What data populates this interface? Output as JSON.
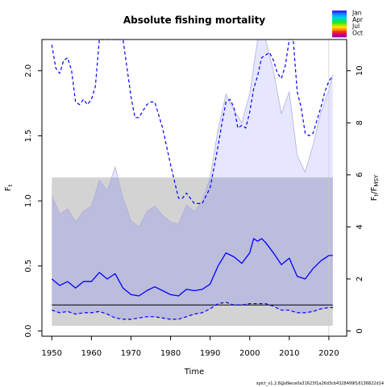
{
  "chart_data": {
    "type": "line",
    "title": "Absolute fishing mortality",
    "xlabel": "Time",
    "ylabel_left": "F_t",
    "ylabel_right": "F_t/F_MSY",
    "xlim": [
      1947.5,
      2024.5
    ],
    "ylim": [
      -0.04,
      2.24
    ],
    "ylim_right": [
      -0.2,
      11.2
    ],
    "x_ticks": [
      1950,
      1960,
      1970,
      1980,
      1990,
      2000,
      2010,
      2020
    ],
    "y_ticks": [
      0.0,
      0.5,
      1.0,
      1.5,
      2.0
    ],
    "y_ticks_right": [
      0,
      2,
      4,
      6,
      8,
      10
    ],
    "reference_line_F": 0.2,
    "ref_band": {
      "x": [
        1950,
        2021
      ],
      "y": [
        0.04,
        1.18
      ]
    },
    "ci_F": {
      "x": [
        1950,
        1952,
        1954,
        1956,
        1958,
        1960,
        1962,
        1964,
        1966,
        1968,
        1970,
        1972,
        1974,
        1976,
        1978,
        1980,
        1982,
        1984,
        1986,
        1988,
        1990,
        1992,
        1994,
        1996,
        1998,
        2000,
        2002,
        2004,
        2006,
        2008,
        2010,
        2012,
        2014,
        2016,
        2018,
        2020,
        2021
      ],
      "lower": [
        0.16,
        0.14,
        0.15,
        0.13,
        0.14,
        0.14,
        0.15,
        0.13,
        0.1,
        0.09,
        0.09,
        0.1,
        0.11,
        0.11,
        0.1,
        0.09,
        0.09,
        0.11,
        0.13,
        0.14,
        0.17,
        0.21,
        0.22,
        0.2,
        0.2,
        0.21,
        0.21,
        0.21,
        0.19,
        0.16,
        0.16,
        0.14,
        0.14,
        0.15,
        0.17,
        0.18,
        0.18
      ],
      "upper": [
        1.04,
        0.9,
        0.94,
        0.84,
        0.92,
        0.96,
        1.16,
        1.08,
        1.26,
        1.02,
        0.85,
        0.8,
        0.92,
        0.96,
        0.89,
        0.84,
        0.82,
        0.97,
        0.92,
        1.0,
        1.18,
        1.55,
        1.82,
        1.7,
        1.6,
        1.82,
        2.24,
        2.24,
        2.0,
        1.67,
        1.84,
        1.35,
        1.22,
        1.43,
        1.68,
        1.85,
        1.97
      ]
    },
    "series": [
      {
        "name": "F_t",
        "x": [
          1950,
          1952,
          1954,
          1956,
          1958,
          1960,
          1962,
          1964,
          1966,
          1968,
          1970,
          1972,
          1974,
          1976,
          1978,
          1980,
          1982,
          1984,
          1986,
          1988,
          1990,
          1992,
          1994,
          1996,
          1998,
          2000,
          2001,
          2002,
          2003,
          2004,
          2006,
          2008,
          2010,
          2012,
          2014,
          2016,
          2018,
          2020,
          2021
        ],
        "y": [
          0.4,
          0.35,
          0.38,
          0.33,
          0.38,
          0.38,
          0.45,
          0.4,
          0.44,
          0.33,
          0.28,
          0.27,
          0.31,
          0.34,
          0.31,
          0.28,
          0.27,
          0.32,
          0.31,
          0.32,
          0.36,
          0.5,
          0.6,
          0.57,
          0.52,
          0.6,
          0.71,
          0.69,
          0.71,
          0.68,
          0.6,
          0.51,
          0.56,
          0.42,
          0.4,
          0.48,
          0.54,
          0.58,
          0.58
        ]
      },
      {
        "name": "F_t lower",
        "x": [
          1950,
          1952,
          1954,
          1956,
          1958,
          1960,
          1962,
          1964,
          1966,
          1968,
          1970,
          1972,
          1974,
          1976,
          1978,
          1980,
          1982,
          1984,
          1986,
          1988,
          1990,
          1992,
          1994,
          1996,
          1998,
          2000,
          2002,
          2004,
          2006,
          2008,
          2010,
          2012,
          2014,
          2016,
          2018,
          2020,
          2021
        ],
        "y": [
          0.16,
          0.14,
          0.15,
          0.13,
          0.14,
          0.14,
          0.15,
          0.13,
          0.1,
          0.09,
          0.09,
          0.1,
          0.11,
          0.11,
          0.1,
          0.09,
          0.09,
          0.11,
          0.13,
          0.14,
          0.17,
          0.21,
          0.22,
          0.2,
          0.2,
          0.21,
          0.21,
          0.21,
          0.19,
          0.16,
          0.16,
          0.14,
          0.14,
          0.15,
          0.17,
          0.18,
          0.18
        ]
      },
      {
        "name": "F_t/F_MSY",
        "axis": "right",
        "x": [
          1950,
          1951,
          1952,
          1953,
          1954,
          1955,
          1956,
          1957,
          1958,
          1959,
          1960,
          1961,
          1962,
          1964,
          1966,
          1968,
          1970,
          1971,
          1972,
          1974,
          1975,
          1976,
          1978,
          1980,
          1982,
          1983,
          1984,
          1986,
          1988,
          1990,
          1992,
          1993,
          1994,
          1995,
          1996,
          1997,
          1998,
          1999,
          2000,
          2001,
          2002,
          2003,
          2004,
          2005,
          2006,
          2007,
          2008,
          2009,
          2010,
          2011,
          2012,
          2013,
          2014,
          2015,
          2016,
          2017,
          2018,
          2019,
          2020,
          2021
        ],
        "y": [
          11.0,
          10.1,
          9.9,
          10.4,
          10.5,
          10.0,
          8.8,
          8.7,
          8.9,
          8.7,
          8.9,
          9.4,
          11.2,
          11.2,
          11.2,
          11.2,
          9.0,
          8.2,
          8.2,
          8.7,
          8.8,
          8.8,
          7.8,
          6.4,
          5.1,
          5.1,
          5.3,
          4.9,
          4.9,
          5.5,
          7.1,
          8.0,
          8.8,
          8.9,
          8.6,
          7.8,
          7.9,
          7.8,
          8.4,
          9.3,
          9.8,
          10.5,
          10.6,
          10.7,
          10.4,
          9.9,
          9.7,
          10.2,
          11.2,
          11.2,
          9.2,
          8.6,
          7.6,
          7.5,
          7.6,
          8.1,
          8.6,
          9.2,
          9.6,
          9.8
        ]
      }
    ],
    "legend_title": "",
    "color_legend": [
      {
        "label": "Jan",
        "colors": [
          "#2b2bff",
          "#1a7bff",
          "#00b5ff"
        ]
      },
      {
        "label": "Apr",
        "colors": [
          "#00d9c4",
          "#00e07a",
          "#2ee62e"
        ]
      },
      {
        "label": "Jul",
        "colors": [
          "#9ae600",
          "#ffe000",
          "#ff9c00"
        ]
      },
      {
        "label": "Oct",
        "colors": [
          "#ff3a00",
          "#e6006a",
          "#a8009c"
        ]
      }
    ],
    "footer": "spict_v1.2.8@d9ece0a31623f1a26d3cb4328499f16136822d14",
    "colors": {
      "band": "#d3d3d3",
      "ci_fill": "#e6e6ff",
      "ci_band_overlap": "#bcbcdc",
      "ci_edge": "#b0b0e0",
      "line": "#0000ff",
      "ref_line": "#000000"
    }
  }
}
